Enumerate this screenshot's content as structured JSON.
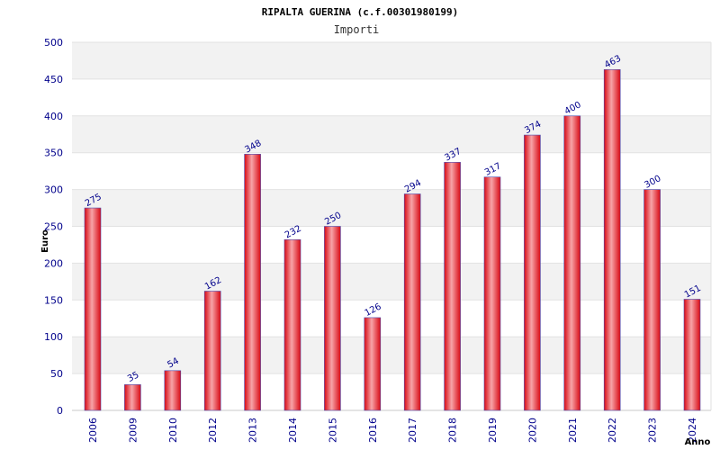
{
  "chart_data": {
    "type": "bar",
    "title": "RIPALTA GUERINA (c.f.00301980199)",
    "subtitle": "Importi",
    "xlabel": "Anno",
    "ylabel": "Euro",
    "ylim": [
      0,
      500
    ],
    "yticks": [
      0,
      50,
      100,
      150,
      200,
      250,
      300,
      350,
      400,
      450,
      500
    ],
    "grid": true,
    "categories": [
      "2006",
      "2009",
      "2010",
      "2012",
      "2013",
      "2014",
      "2015",
      "2016",
      "2017",
      "2018",
      "2019",
      "2020",
      "2021",
      "2022",
      "2023",
      "2024"
    ],
    "values": [
      275,
      35,
      54,
      162,
      348,
      232,
      250,
      126,
      294,
      337,
      317,
      374,
      400,
      463,
      300,
      151
    ],
    "colors": {
      "bar": "#e8141c",
      "bar_highlight": "#f5a0a4",
      "bar_edge": "#4a4ab0",
      "band": "#f2f2f2",
      "label": "#00008b"
    }
  }
}
